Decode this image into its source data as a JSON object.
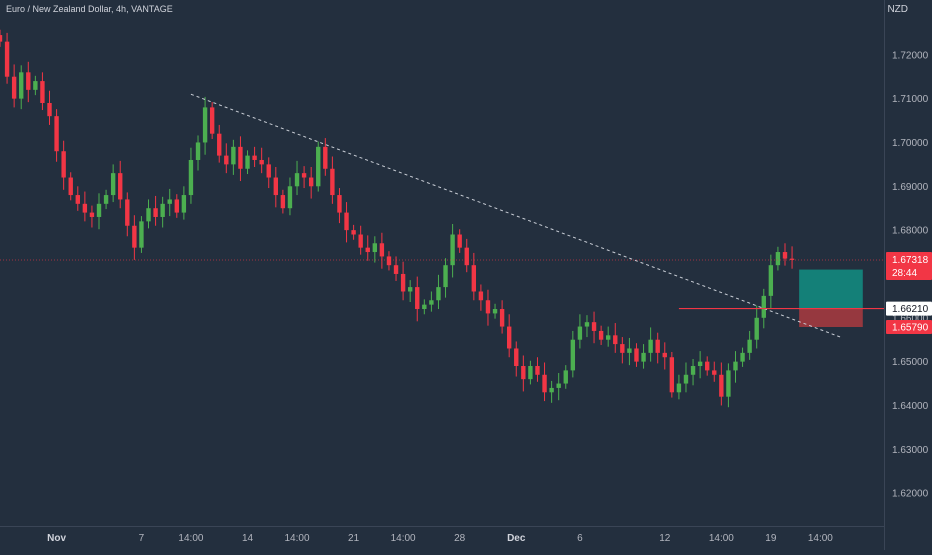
{
  "header": {
    "symbol_title": "Euro / New Zealand Dollar, 4h, VANTAGE",
    "currency": "NZD"
  },
  "colors": {
    "background": "#232f3e",
    "up": "#4caf50",
    "down": "#f23645",
    "trendline": "#c9ced6",
    "level_line": "#f23645",
    "target_zone": "#138a7e",
    "stop_zone": "#a33a3f",
    "price_tag_red": "#f23645",
    "price_tag_white": "#ffffff"
  },
  "chart_data": {
    "type": "candlestick",
    "title": "Euro / New Zealand Dollar, 4h, VANTAGE",
    "ylabel": "NZD",
    "ylim": [
      1.6125,
      1.7325
    ],
    "y_ticks": [
      "1.72000",
      "1.71000",
      "1.70000",
      "1.69000",
      "1.68000",
      "1.67000",
      "1.66000",
      "1.65000",
      "1.64000",
      "1.63000",
      "1.62000"
    ],
    "y_tick_values": [
      1.72,
      1.71,
      1.7,
      1.69,
      1.68,
      1.67,
      1.66,
      1.65,
      1.64,
      1.63,
      1.62
    ],
    "x_ticks": [
      "Nov",
      "7",
      "14:00",
      "14",
      "14:00",
      "21",
      "14:00",
      "28",
      "Dec",
      "6",
      "12",
      "14:00",
      "19",
      "14:00"
    ],
    "x_tick_index": [
      8,
      20,
      27,
      35,
      42,
      50,
      57,
      65,
      73,
      82,
      94,
      102,
      109,
      116
    ],
    "x_range": [
      0,
      125
    ],
    "grid": false,
    "candles_note": "approximate 4h bars read from the chart",
    "closes": [
      1.723,
      1.715,
      1.71,
      1.716,
      1.712,
      1.714,
      1.709,
      1.706,
      1.698,
      1.692,
      1.688,
      1.686,
      1.684,
      1.683,
      1.686,
      1.688,
      1.693,
      1.687,
      1.681,
      1.676,
      1.682,
      1.685,
      1.683,
      1.686,
      1.687,
      1.684,
      1.688,
      1.696,
      1.7,
      1.708,
      1.702,
      1.697,
      1.695,
      1.699,
      1.694,
      1.697,
      1.696,
      1.695,
      1.692,
      1.688,
      1.685,
      1.69,
      1.693,
      1.692,
      1.69,
      1.699,
      1.694,
      1.688,
      1.684,
      1.68,
      1.679,
      1.676,
      1.675,
      1.677,
      1.674,
      1.672,
      1.67,
      1.666,
      1.667,
      1.662,
      1.663,
      1.664,
      1.667,
      1.672,
      1.679,
      1.676,
      1.672,
      1.666,
      1.664,
      1.661,
      1.662,
      1.658,
      1.653,
      1.649,
      1.646,
      1.649,
      1.647,
      1.643,
      1.644,
      1.645,
      1.648,
      1.655,
      1.658,
      1.659,
      1.657,
      1.655,
      1.656,
      1.654,
      1.652,
      1.653,
      1.65,
      1.652,
      1.655,
      1.652,
      1.651,
      1.643,
      1.645,
      1.647,
      1.649,
      1.65,
      1.648,
      1.647,
      1.642,
      1.648,
      1.65,
      1.652,
      1.655,
      1.66,
      1.665,
      1.672,
      1.675,
      1.6735,
      1.6732
    ],
    "levels": [
      {
        "label": "1.66210",
        "value": 1.6621,
        "style": "white"
      },
      {
        "label": "1.65790",
        "value": 1.6579,
        "style": "red"
      }
    ],
    "current_price": {
      "label": "1.67318",
      "value": 1.67318,
      "countdown": "28:44"
    },
    "trendline": {
      "from_index": 27,
      "from_value": 1.711,
      "to_index": 119,
      "to_value": 1.6555
    },
    "position": {
      "start_index": 113,
      "end_index": 122,
      "target": 1.671,
      "entry": 1.6621,
      "stop": 1.6579
    }
  }
}
